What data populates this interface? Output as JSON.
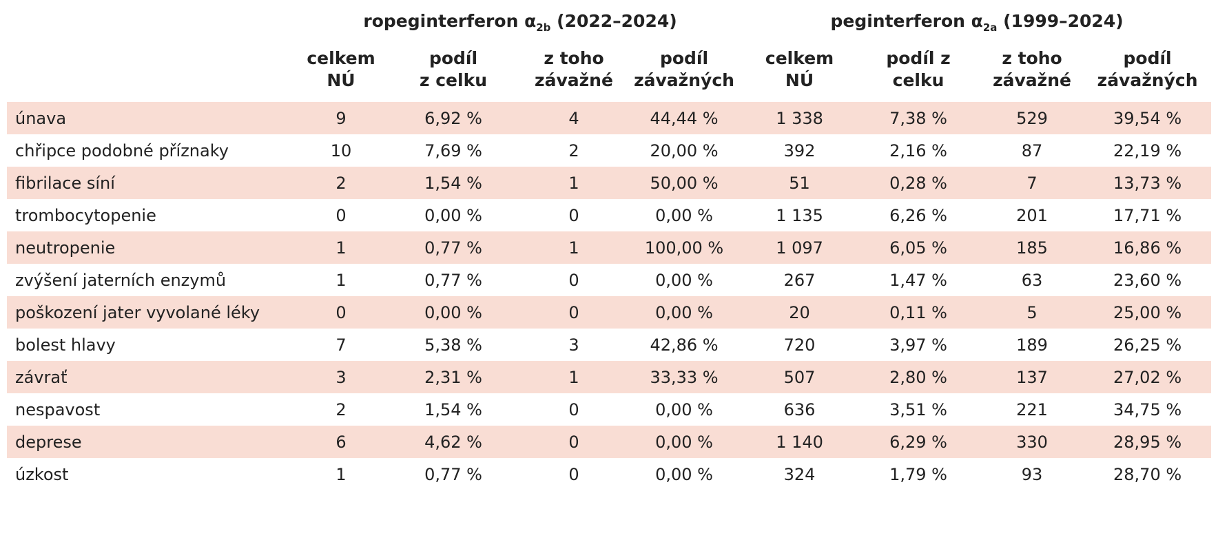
{
  "header": {
    "group1": {
      "prefix": "ropeginterferon α",
      "sub": "2b",
      "period": "(2022–2024)"
    },
    "group2": {
      "prefix": "peginterferon α",
      "sub": "2a",
      "period": "(1999–2024)"
    },
    "columns": [
      {
        "line1": "celkem",
        "line2": "NÚ"
      },
      {
        "line1": "podíl",
        "line2": "z celku"
      },
      {
        "line1": "z toho",
        "line2": "závažné"
      },
      {
        "line1": "podíl",
        "line2": "závažných"
      },
      {
        "line1": "celkem",
        "line2": "NÚ"
      },
      {
        "line1": "podíl z",
        "line2": "celku"
      },
      {
        "line1": "z toho",
        "line2": "závažné"
      },
      {
        "line1": "podíl",
        "line2": "závažných"
      }
    ]
  },
  "rows": [
    {
      "label": "únava",
      "values": [
        "9",
        "6,92 %",
        "4",
        "44,44 %",
        "1 338",
        "7,38 %",
        "529",
        "39,54 %"
      ]
    },
    {
      "label": "chřipce podobné příznaky",
      "values": [
        "10",
        "7,69 %",
        "2",
        "20,00 %",
        "392",
        "2,16 %",
        "87",
        "22,19 %"
      ]
    },
    {
      "label": "fibrilace síní",
      "values": [
        "2",
        "1,54 %",
        "1",
        "50,00 %",
        "51",
        "0,28 %",
        "7",
        "13,73 %"
      ]
    },
    {
      "label": "trombocytopenie",
      "values": [
        "0",
        "0,00 %",
        "0",
        "0,00 %",
        "1 135",
        "6,26 %",
        "201",
        "17,71 %"
      ]
    },
    {
      "label": "neutropenie",
      "values": [
        "1",
        "0,77 %",
        "1",
        "100,00 %",
        "1 097",
        "6,05 %",
        "185",
        "16,86 %"
      ]
    },
    {
      "label": "zvýšení jaterních enzymů",
      "values": [
        "1",
        "0,77 %",
        "0",
        "0,00 %",
        "267",
        "1,47 %",
        "63",
        "23,60 %"
      ]
    },
    {
      "label": "poškození jater vyvolané léky",
      "values": [
        "0",
        "0,00 %",
        "0",
        "0,00 %",
        "20",
        "0,11 %",
        "5",
        "25,00 %"
      ]
    },
    {
      "label": "bolest hlavy",
      "values": [
        "7",
        "5,38 %",
        "3",
        "42,86 %",
        "720",
        "3,97 %",
        "189",
        "26,25 %"
      ]
    },
    {
      "label": "závrať",
      "values": [
        "3",
        "2,31 %",
        "1",
        "33,33 %",
        "507",
        "2,80 %",
        "137",
        "27,02 %"
      ]
    },
    {
      "label": "nespavost",
      "values": [
        "2",
        "1,54 %",
        "0",
        "0,00 %",
        "636",
        "3,51 %",
        "221",
        "34,75 %"
      ]
    },
    {
      "label": "deprese",
      "values": [
        "6",
        "4,62 %",
        "0",
        "0,00 %",
        "1 140",
        "6,29 %",
        "330",
        "28,95 %"
      ]
    },
    {
      "label": "úzkost",
      "values": [
        "1",
        "0,77 %",
        "0",
        "0,00 %",
        "324",
        "1,79 %",
        "93",
        "28,70 %"
      ]
    }
  ],
  "colors": {
    "row_shade": "#f9ddd4",
    "text": "#222222"
  }
}
